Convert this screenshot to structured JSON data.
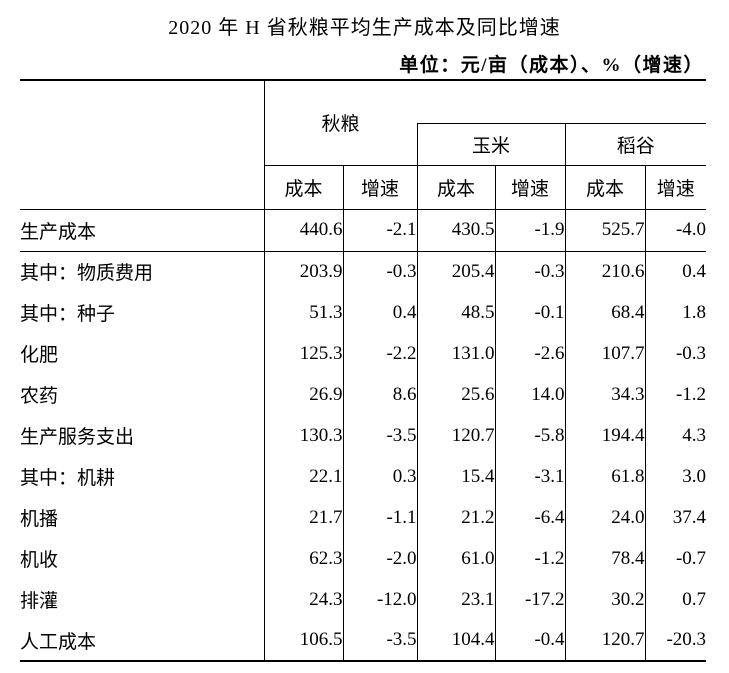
{
  "title": "2020 年 H 省秋粮平均生产成本及同比增速",
  "unit_note": "单位：元/亩（成本）、%（增速）",
  "colors": {
    "text": "#000000",
    "line": "#000000",
    "background": "#ffffff"
  },
  "table": {
    "col_groups": [
      {
        "label": "秋粮"
      },
      {
        "label": "玉米"
      },
      {
        "label": "稻谷"
      }
    ],
    "sub_headers": {
      "cost": "成本",
      "growth": "增速"
    },
    "rows": [
      {
        "label": "生产成本",
        "indent": 0,
        "values": [
          "440.6",
          "-2.1",
          "430.5",
          "-1.9",
          "525.7",
          "-4.0"
        ]
      },
      {
        "label": "其中：物质费用",
        "indent": 0,
        "values": [
          "203.9",
          "-0.3",
          "205.4",
          "-0.3",
          "210.6",
          "0.4"
        ]
      },
      {
        "label": "其中：种子",
        "indent": 1,
        "values": [
          "51.3",
          "0.4",
          "48.5",
          "-0.1",
          "68.4",
          "1.8"
        ]
      },
      {
        "label": "化肥",
        "indent": 2,
        "values": [
          "125.3",
          "-2.2",
          "131.0",
          "-2.6",
          "107.7",
          "-0.3"
        ]
      },
      {
        "label": "农药",
        "indent": 2,
        "values": [
          "26.9",
          "8.6",
          "25.6",
          "14.0",
          "34.3",
          "-1.2"
        ]
      },
      {
        "label": "生产服务支出",
        "indent": 1,
        "values": [
          "130.3",
          "-3.5",
          "120.7",
          "-5.8",
          "194.4",
          "4.3"
        ]
      },
      {
        "label": "其中：机耕",
        "indent": 1,
        "values": [
          "22.1",
          "0.3",
          "15.4",
          "-3.1",
          "61.8",
          "3.0"
        ]
      },
      {
        "label": "机播",
        "indent": 2,
        "values": [
          "21.7",
          "-1.1",
          "21.2",
          "-6.4",
          "24.0",
          "37.4"
        ]
      },
      {
        "label": "机收",
        "indent": 2,
        "values": [
          "62.3",
          "-2.0",
          "61.0",
          "-1.2",
          "78.4",
          "-0.7"
        ]
      },
      {
        "label": "排灌",
        "indent": 2,
        "values": [
          "24.3",
          "-12.0",
          "23.1",
          "-17.2",
          "30.2",
          "0.7"
        ]
      },
      {
        "label": "人工成本",
        "indent": 1,
        "values": [
          "106.5",
          "-3.5",
          "104.4",
          "-0.4",
          "120.7",
          "-20.3"
        ]
      }
    ]
  }
}
